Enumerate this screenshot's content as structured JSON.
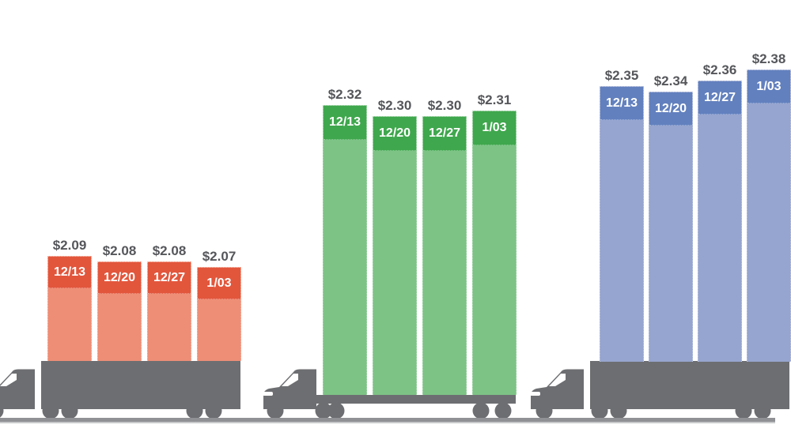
{
  "chart_data": {
    "type": "bar",
    "title": "",
    "description": "Pictorial bar chart: weekly price bars stacked on truck silhouettes",
    "categories": [
      "12/13",
      "12/20",
      "12/27",
      "1/03"
    ],
    "series": [
      {
        "name": "red",
        "values": [
          2.09,
          2.08,
          2.08,
          2.07
        ],
        "value_labels": [
          "$2.09",
          "$2.08",
          "$2.08",
          "$2.07"
        ],
        "cap_color": "#E2563C",
        "body_color": "#EE8E76"
      },
      {
        "name": "green",
        "values": [
          2.32,
          2.3,
          2.3,
          2.31
        ],
        "value_labels": [
          "$2.32",
          "$2.30",
          "$2.30",
          "$2.31"
        ],
        "cap_color": "#3FA74D",
        "body_color": "#7DC386"
      },
      {
        "name": "blue",
        "values": [
          2.35,
          2.34,
          2.36,
          2.38
        ],
        "value_labels": [
          "$2.35",
          "$2.34",
          "$2.36",
          "$2.38"
        ],
        "cap_color": "#6280BE",
        "body_color": "#96A5CF",
        "last_bar_partially_offscreen": true
      }
    ],
    "grid": false,
    "legend": false,
    "axes_visible": false
  },
  "icons": [
    "semi-truck-icon",
    "flatbed-truck-icon",
    "semi-truck-icon"
  ],
  "colors": {
    "truck": "#6D6E71",
    "ground": "#8F9194",
    "value_text": "#55565A",
    "date_text": "#FFFFFF",
    "background": "#FFFFFF"
  }
}
